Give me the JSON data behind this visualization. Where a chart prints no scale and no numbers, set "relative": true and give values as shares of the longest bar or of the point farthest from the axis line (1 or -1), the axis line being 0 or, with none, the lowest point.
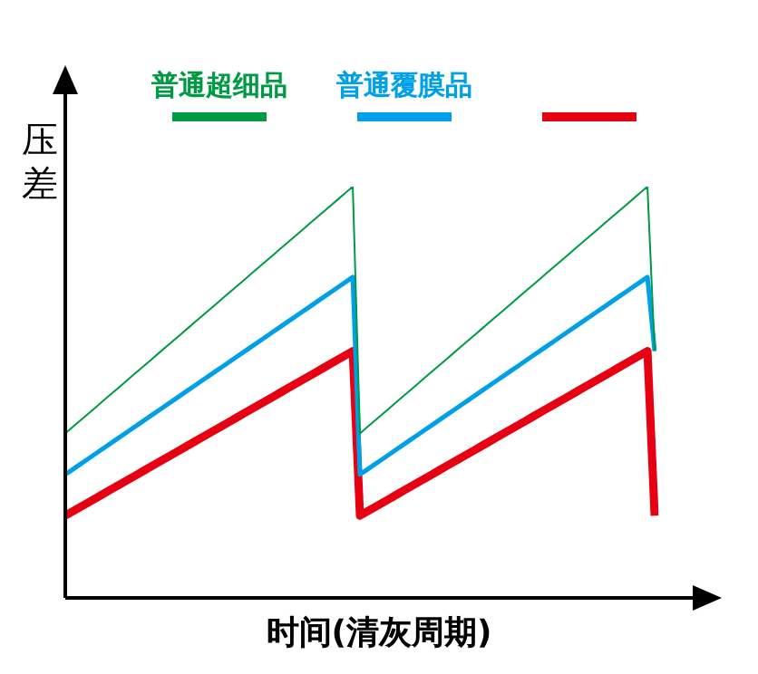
{
  "chart_data": {
    "type": "line",
    "relative": true,
    "xlabel": "时间(清灰周期)",
    "ylabel": "压差",
    "grid": false,
    "legend": "top",
    "marker": "none",
    "line_style": "solid",
    "categories": [
      null,
      null,
      null,
      null,
      null,
      null,
      null,
      null,
      null,
      null,
      null,
      null,
      null,
      null,
      null,
      null,
      null,
      null,
      null,
      null,
      null,
      null,
      null,
      null,
      null,
      null,
      null,
      null,
      null,
      null,
      null,
      null,
      null,
      null,
      null,
      null,
      null,
      null,
      null,
      null,
      null,
      null,
      null,
      null,
      null,
      null,
      null,
      null,
      null,
      null,
      null,
      null,
      null,
      null,
      null,
      null,
      null,
      null,
      null,
      null,
      null,
      null,
      null,
      null,
      null,
      null,
      null,
      null,
      null,
      null,
      null,
      null,
      null,
      null,
      null,
      null,
      null,
      null,
      null,
      null,
      null,
      null,
      null
    ],
    "series": [
      {
        "name": "普通超细品",
        "color": "#009944",
        "values": [
          0.4,
          0.415,
          0.43,
          0.445,
          0.46,
          0.475,
          0.49,
          0.505,
          0.52,
          0.535,
          0.55,
          0.565,
          0.58,
          0.595,
          0.61,
          0.625,
          0.64,
          0.655,
          0.67,
          0.685,
          0.7,
          0.715,
          0.73,
          0.745,
          0.76,
          0.775,
          0.79,
          0.805,
          0.82,
          0.835,
          0.85,
          0.865,
          0.88,
          0.895,
          0.91,
          0.925,
          0.94,
          0.955,
          0.97,
          0.985,
          1,
          0.4,
          0.415,
          0.43,
          0.445,
          0.46,
          0.475,
          0.49,
          0.505,
          0.52,
          0.535,
          0.55,
          0.565,
          0.58,
          0.595,
          0.61,
          0.625,
          0.64,
          0.655,
          0.67,
          0.685,
          0.7,
          0.715,
          0.73,
          0.745,
          0.76,
          0.775,
          0.79,
          0.805,
          0.82,
          0.835,
          0.85,
          0.865,
          0.88,
          0.895,
          0.91,
          0.925,
          0.94,
          0.955,
          0.97,
          0.985,
          1,
          0.6
        ]
      },
      {
        "name": "普通覆膜品",
        "color": "#00a0e9",
        "values": [
          0.3,
          0.312,
          0.324,
          0.336,
          0.348,
          0.36,
          0.372,
          0.384,
          0.396,
          0.408,
          0.42,
          0.432,
          0.444,
          0.456,
          0.468,
          0.48,
          0.492,
          0.504,
          0.516,
          0.528,
          0.54,
          0.552,
          0.564,
          0.576,
          0.588,
          0.6,
          0.612,
          0.624,
          0.636,
          0.648,
          0.66,
          0.672,
          0.684,
          0.696,
          0.708,
          0.72,
          0.732,
          0.744,
          0.756,
          0.768,
          0.78,
          0.3,
          0.312,
          0.324,
          0.336,
          0.348,
          0.36,
          0.372,
          0.384,
          0.396,
          0.408,
          0.42,
          0.432,
          0.444,
          0.456,
          0.468,
          0.48,
          0.492,
          0.504,
          0.516,
          0.528,
          0.54,
          0.552,
          0.564,
          0.576,
          0.588,
          0.6,
          0.612,
          0.624,
          0.636,
          0.648,
          0.66,
          0.672,
          0.684,
          0.696,
          0.708,
          0.72,
          0.732,
          0.744,
          0.756,
          0.768,
          0.78,
          0.6
        ]
      },
      {
        "color": "#e60012",
        "values": [
          0.2,
          0.21,
          0.22,
          0.23,
          0.24,
          0.25,
          0.26,
          0.27,
          0.28,
          0.29,
          0.3,
          0.31,
          0.32,
          0.33,
          0.34,
          0.35,
          0.36,
          0.37,
          0.38,
          0.39,
          0.4,
          0.41,
          0.42,
          0.43,
          0.44,
          0.45,
          0.46,
          0.47,
          0.48,
          0.49,
          0.5,
          0.51,
          0.52,
          0.53,
          0.54,
          0.55,
          0.56,
          0.57,
          0.58,
          0.59,
          0.6,
          0.2,
          0.21,
          0.22,
          0.23,
          0.24,
          0.25,
          0.26,
          0.27,
          0.28,
          0.29,
          0.3,
          0.31,
          0.32,
          0.33,
          0.34,
          0.35,
          0.36,
          0.37,
          0.38,
          0.39,
          0.4,
          0.41,
          0.42,
          0.43,
          0.44,
          0.45,
          0.46,
          0.47,
          0.48,
          0.49,
          0.5,
          0.51,
          0.52,
          0.53,
          0.54,
          0.55,
          0.56,
          0.57,
          0.58,
          0.59,
          0.6,
          0.2
        ]
      }
    ]
  }
}
